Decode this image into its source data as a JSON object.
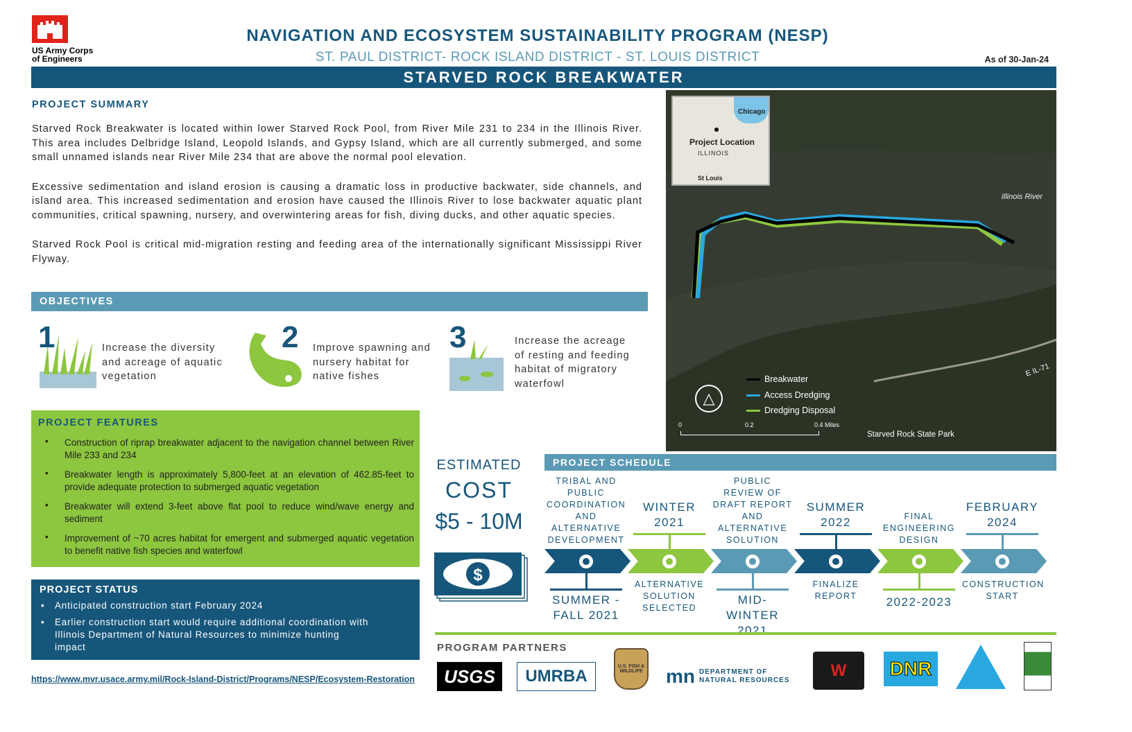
{
  "header": {
    "org_logo_text": "US Army Corps of Engineers",
    "title": "NAVIGATION AND ECOSYSTEM SUSTAINABILITY PROGRAM (NESP)",
    "subtitle": "ST. PAUL DISTRICT- ROCK ISLAND DISTRICT - ST. LOUIS DISTRICT",
    "as_of": "As of 30-Jan-24",
    "banner": "STARVED ROCK BREAKWATER"
  },
  "summary": {
    "heading": "PROJECT SUMMARY",
    "paragraphs": [
      "Starved Rock Breakwater is located within lower Starved Rock Pool, from River Mile 231 to 234 in the Illinois River. This area includes Delbridge Island, Leopold Islands, and Gypsy Island, which are all currently submerged, and some small unnamed islands near River Mile 234 that are above the normal pool elevation.",
      "Excessive sedimentation and island erosion is causing a dramatic loss in productive backwater, side channels, and island area.  This increased sedimentation and erosion have caused the Illinois River to lose backwater aquatic plant communities, critical spawning, nursery, and overwintering areas for fish, diving ducks, and other aquatic species.",
      "Starved Rock Pool is critical mid-migration resting and feeding area of the internationally significant Mississippi River Flyway."
    ]
  },
  "objectives": {
    "heading": "OBJECTIVES",
    "items": [
      {
        "num": "1",
        "text": "Increase the diversity and acreage of aquatic vegetation",
        "icon": "aquatic-grass-icon"
      },
      {
        "num": "2",
        "text": "Improve spawning and nursery habitat for native fishes",
        "icon": "fish-icon"
      },
      {
        "num": "3",
        "text": "Increase the acreage of resting and feeding habitat of migratory waterfowl",
        "icon": "wetland-fish-icon"
      }
    ]
  },
  "features": {
    "heading": "PROJECT FEATURES",
    "items": [
      "Construction of riprap breakwater adjacent to the navigation channel between River Mile 233 and 234",
      "Breakwater length is approximately 5,800-feet at an elevation of 462.85-feet to provide adequate protection to submerged aquatic vegetation",
      "Breakwater will extend 3-feet above flat pool to reduce wind/wave energy and sediment",
      "Improvement of ~70 acres habitat for emergent and submerged aquatic vegetation to benefit native fish species and waterfowl"
    ]
  },
  "status": {
    "heading": "PROJECT  STATUS",
    "items": [
      "Anticipated construction start February 2024",
      "Earlier construction start would require additional coordination with Illinois Department of Natural Resources to minimize hunting impact"
    ]
  },
  "url": "https://www.mvr.usace.army.mil/Rock-Island-District/Programs/NESP/Ecosystem-Restoration",
  "map": {
    "inset": {
      "chicago": "Chicago",
      "project_location": "Project Location",
      "illinois": "ILLINOIS",
      "st_louis": "St Louis"
    },
    "river_label": "Illinois River",
    "road_label": "E IL-71",
    "park_label": "Starved Rock State Park",
    "legend": [
      {
        "label": "Breakwater",
        "color": "#000000"
      },
      {
        "label": "Access Dredging",
        "color": "#29a8e0"
      },
      {
        "label": "Dredging Disposal",
        "color": "#8dc63f"
      }
    ],
    "scale": [
      "0",
      "0.2",
      "0.4 Miles"
    ]
  },
  "cost": {
    "line1": "ESTIMATED",
    "line2": "COST",
    "value": "$5 - 10M"
  },
  "schedule": {
    "heading": "PROJECT SCHEDULE",
    "milestones": [
      {
        "top": "TRIBAL AND PUBLIC COORDINATION AND ALTERNATIVE DEVELOPMENT",
        "bottom": "SUMMER - FALL 2021"
      },
      {
        "top": "WINTER 2021",
        "bottom": "ALTERNATIVE SOLUTION SELECTED"
      },
      {
        "top": "PUBLIC REVIEW OF DRAFT REPORT AND ALTERNATIVE SOLUTION",
        "bottom": "MID-WINTER 2021"
      },
      {
        "top": "SUMMER 2022",
        "bottom": "FINALIZE REPORT"
      },
      {
        "top": "FINAL ENGINEERING DESIGN",
        "bottom": "2022-2023"
      },
      {
        "top": "FEBRUARY 2024",
        "bottom": "CONSTRUCTION START"
      }
    ]
  },
  "partners": {
    "heading": "PROGRAM PARTNERS",
    "logos": [
      "USGS",
      "UMRBA",
      "U.S. Fish & Wildlife Service",
      "mn DEPARTMENT OF NATURAL RESOURCES",
      "Wisconsin Dept of Natural Resources",
      "DNR",
      "Missouri Department of Conservation",
      "Illinois Department of Natural Resources"
    ]
  },
  "colors": {
    "dark_blue": "#17567b",
    "teal": "#5b9ab4",
    "green": "#8dc63f"
  }
}
